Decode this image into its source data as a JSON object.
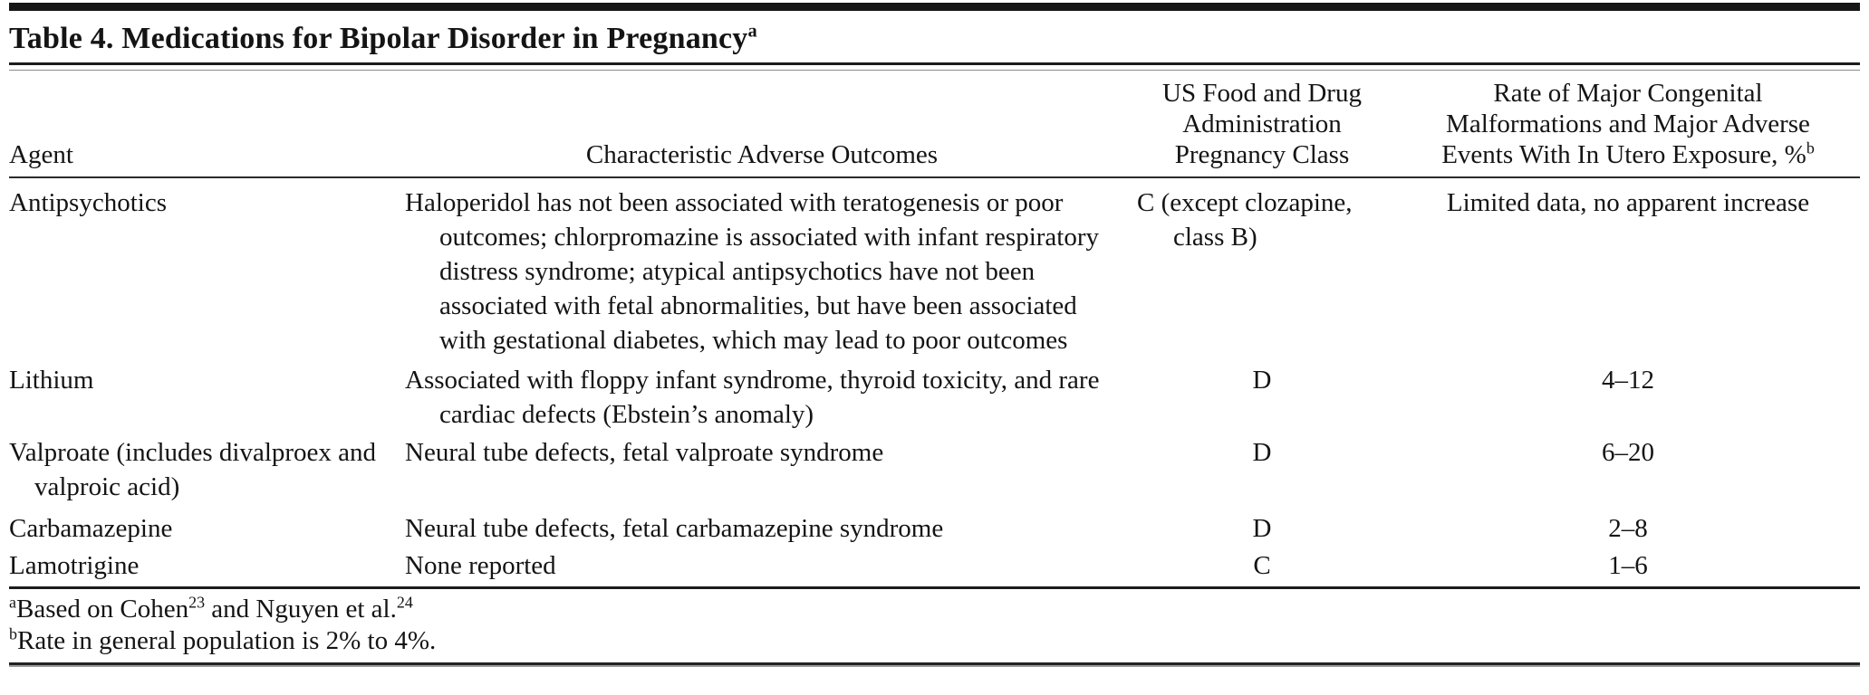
{
  "title": {
    "text": "Table 4. Medications for Bipolar Disorder in Pregnancy",
    "superscript": "a"
  },
  "table": {
    "columns": {
      "agent": "Agent",
      "outcomes": "Characteristic Adverse Outcomes",
      "fda_lines": [
        "US Food and Drug",
        "Administration",
        "Pregnancy Class"
      ],
      "rate_lines": [
        "Rate of Major Congenital",
        "Malformations and Major Adverse",
        "Events With In Utero Exposure, %"
      ],
      "rate_superscript": "b"
    },
    "rows": [
      {
        "agent": "Antipsychotics",
        "outcomes": "Haloperidol has not been associated with teratogenesis or poor outcomes; chlorpromazine is associated with infant respiratory distress syndrome; atypical antipsychotics have not been associated with fetal abnormalities, but have been associated with gestational diabetes, which may lead to poor outcomes",
        "fda_class": "C (except clozapine, class B)",
        "rate": "Limited data, no apparent increase"
      },
      {
        "agent": "Lithium",
        "outcomes": "Associated with floppy infant syndrome, thyroid toxicity, and rare cardiac defects (Ebstein’s anomaly)",
        "fda_class": "D",
        "rate": "4–12"
      },
      {
        "agent": "Valproate (includes divalproex and valproic acid)",
        "outcomes": "Neural tube defects, fetal valproate syndrome",
        "fda_class": "D",
        "rate": "6–20"
      },
      {
        "agent": "Carbamazepine",
        "outcomes": "Neural tube defects, fetal carbamazepine syndrome",
        "fda_class": "D",
        "rate": "2–8"
      },
      {
        "agent": "Lamotrigine",
        "outcomes": "None reported",
        "fda_class": "C",
        "rate": "1–6"
      }
    ]
  },
  "footnotes": {
    "a": {
      "marker": "a",
      "part1": "Based on Cohen",
      "ref1": "23",
      "part2": " and Nguyen et al.",
      "ref2": "24"
    },
    "b": {
      "marker": "b",
      "text": "Rate in general population is 2% to 4%."
    }
  }
}
